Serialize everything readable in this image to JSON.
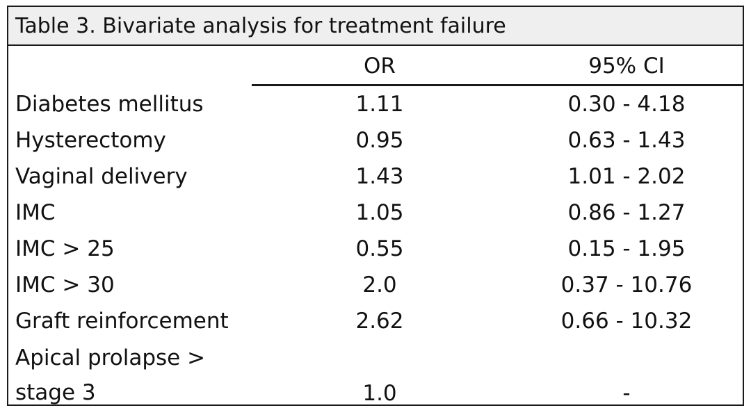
{
  "table": {
    "caption": "Table 3. Bivariate analysis for treatment failure",
    "headers": {
      "label": "",
      "or": "OR",
      "ci": "95% CI"
    },
    "rows": [
      {
        "label": "Diabetes mellitus",
        "or": "1.11",
        "ci": "0.30 - 4.18"
      },
      {
        "label": "Hysterectomy",
        "or": "0.95",
        "ci": "0.63 - 1.43"
      },
      {
        "label": "Vaginal delivery",
        "or": "1.43",
        "ci": "1.01 - 2.02"
      },
      {
        "label": "IMC",
        "or": "1.05",
        "ci": "0.86 - 1.27"
      },
      {
        "label": "IMC > 25",
        "or": "0.55",
        "ci": "0.15 - 1.95"
      },
      {
        "label": "IMC > 30",
        "or": "2.0",
        "ci": "0.37 - 10.76"
      },
      {
        "label": "Graft reinforcement",
        "or": "2.62",
        "ci": "0.66 - 10.32"
      },
      {
        "label": "Apical prolapse > stage 3",
        "or": "1.0",
        "ci": "-"
      }
    ]
  }
}
